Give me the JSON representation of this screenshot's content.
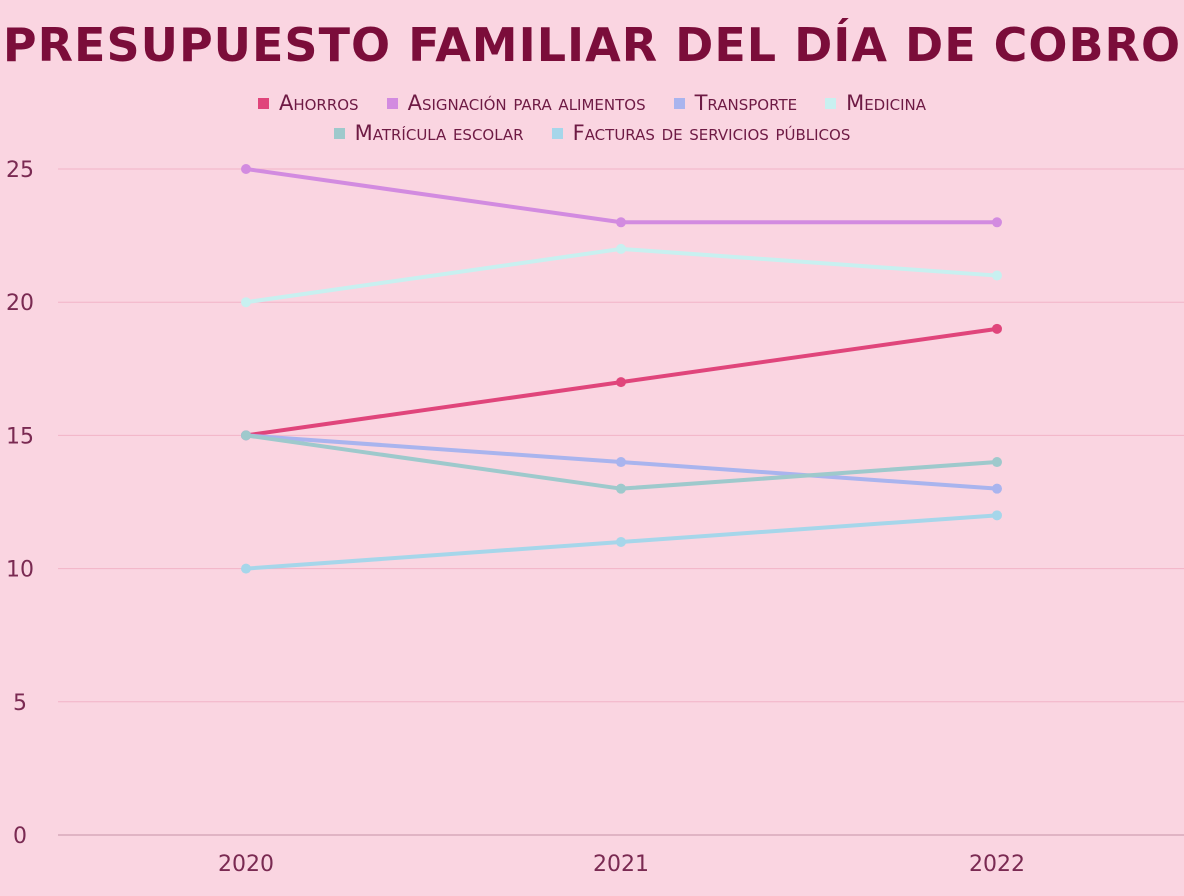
{
  "chart_data": {
    "type": "line",
    "title": "PRESUPUESTO FAMILIAR DEL DÍA DE COBRO",
    "x": [
      "2020",
      "2021",
      "2022"
    ],
    "ylim": [
      0,
      25
    ],
    "yticks": [
      "0",
      "5",
      "10",
      "15",
      "20",
      "25"
    ],
    "grid": true,
    "legend_placement": "top",
    "series": [
      {
        "name": "Ahorros",
        "values": [
          15,
          17,
          19
        ],
        "color": "#e0457b"
      },
      {
        "name": "Asignación para alimentos",
        "values": [
          25,
          23,
          23
        ],
        "color": "#d28be0"
      },
      {
        "name": "Transporte",
        "values": [
          15,
          14,
          13
        ],
        "color": "#a9b4ee"
      },
      {
        "name": "Medicina",
        "values": [
          20,
          22,
          21
        ],
        "color": "#c8f0f0"
      },
      {
        "name": "Matrícula escolar",
        "values": [
          15,
          13,
          14
        ],
        "color": "#9ec9cc"
      },
      {
        "name": "Facturas de servicios públicos",
        "values": [
          10,
          11,
          12
        ],
        "color": "#a6d6ea"
      }
    ]
  }
}
